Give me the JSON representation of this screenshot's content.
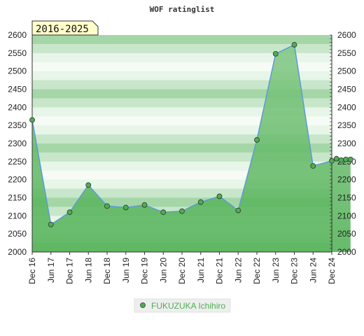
{
  "chart_data": {
    "type": "area",
    "title": "WOF ratinglist",
    "period_badge": "2016-2025",
    "ylim": [
      2000,
      2600
    ],
    "y_ticks": [
      2000,
      2050,
      2100,
      2150,
      2200,
      2250,
      2300,
      2350,
      2400,
      2450,
      2500,
      2550,
      2600
    ],
    "x_ticks": [
      "Dec 16",
      "Jun 17",
      "Dec 17",
      "Jun 18",
      "Dec 18",
      "Jun 19",
      "Dec 19",
      "Jun 20",
      "Dec 20",
      "Jun 21",
      "Dec 21",
      "Jun 22",
      "Dec 22",
      "Jun 23",
      "Dec 23",
      "Jun 24",
      "Dec 24"
    ],
    "series": [
      {
        "name": "FUKUZUKA Ichihiro",
        "color": "#5b9bd5",
        "marker_color": "#4caf50",
        "values": [
          2365,
          2076,
          2110,
          2185,
          2127,
          2123,
          2130,
          2110,
          2113,
          2138,
          2154,
          2115,
          2310,
          2548,
          2573,
          2238,
          2252,
          2258,
          2254,
          2256,
          2256
        ]
      }
    ],
    "x_positions": [
      0,
      1,
      2,
      3,
      4,
      5,
      6,
      7,
      8,
      9,
      10,
      11,
      12,
      13,
      14,
      15,
      16,
      16.25,
      16.5,
      16.75,
      17
    ],
    "grid": true,
    "legend": "bottom",
    "fill_color": "#4caf50",
    "background_color": "#e8f5e9"
  }
}
